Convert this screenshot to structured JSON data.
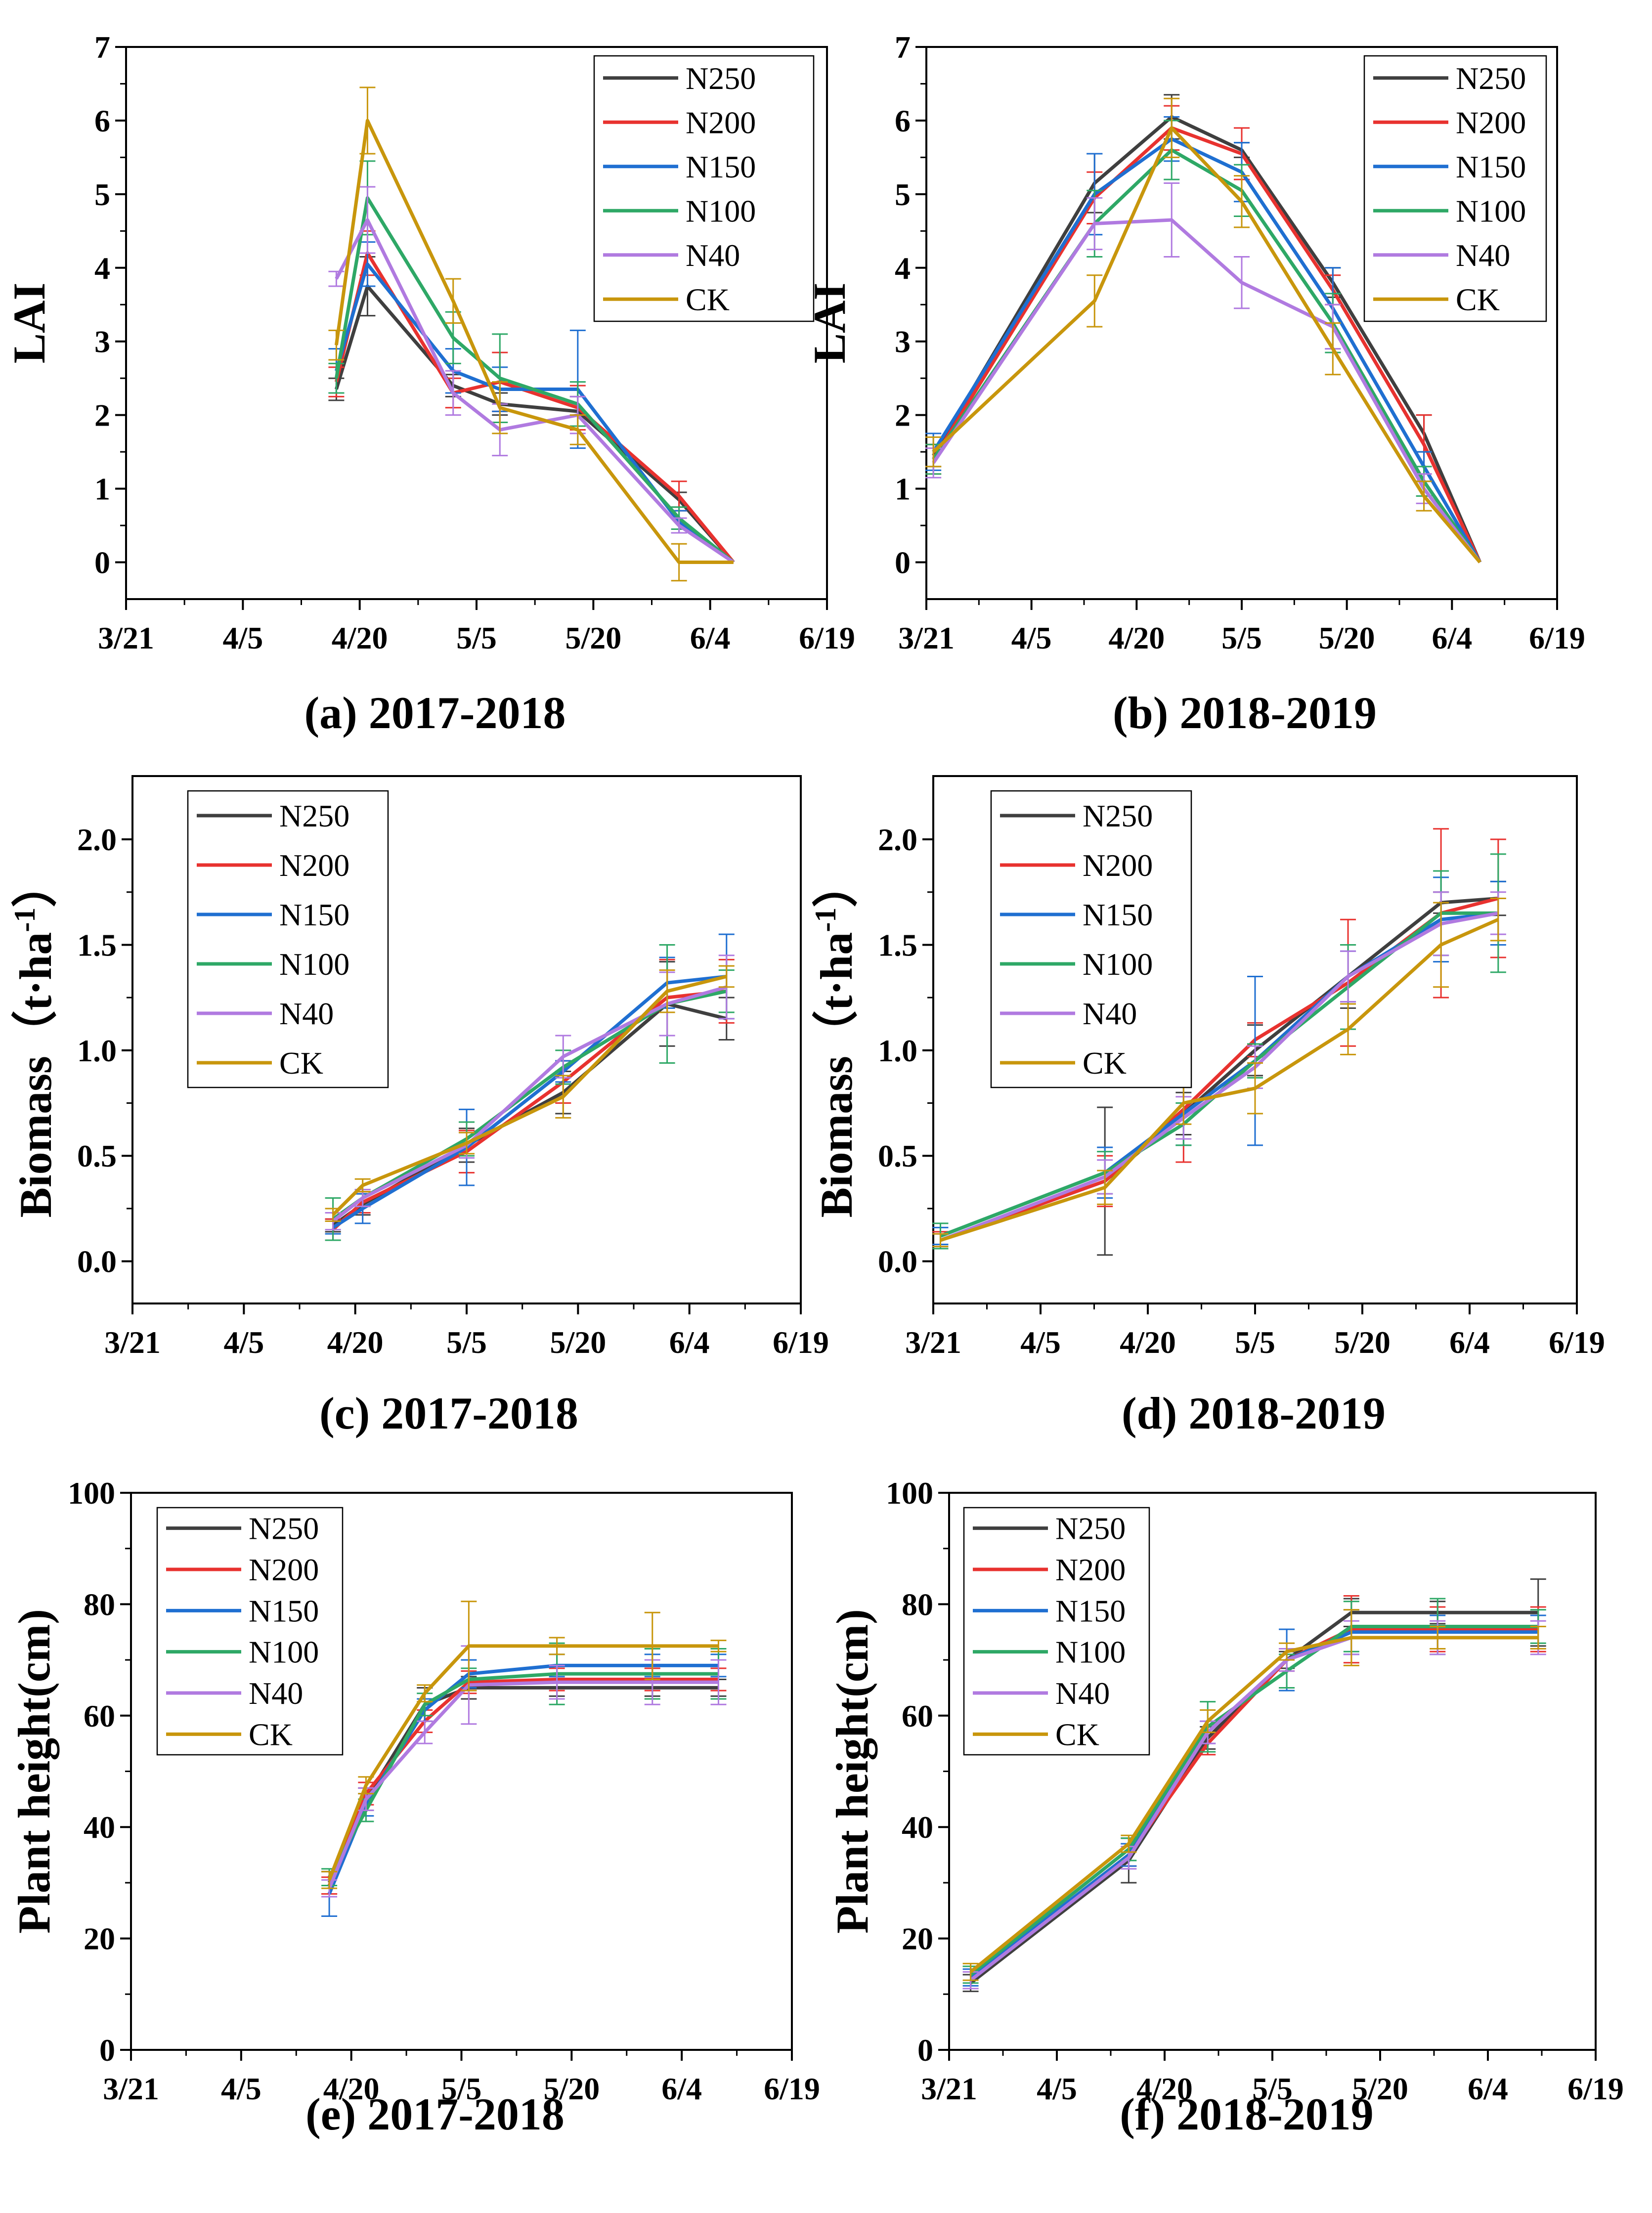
{
  "colors": {
    "N250": "#3f3f3f",
    "N200": "#e8322f",
    "N150": "#1f6fd1",
    "N100": "#2ea866",
    "N40": "#b07ae0",
    "CK": "#c8960c",
    "axis": "#000000"
  },
  "chart_data": [
    {
      "id": "a",
      "type": "line",
      "caption": "(a) 2017-2018",
      "ylabel": "LAI",
      "xlabel": "",
      "x_tick_labels": [
        "3/21",
        "4/5",
        "4/20",
        "5/5",
        "5/20",
        "6/4",
        "6/19"
      ],
      "y_tick_labels": [
        "0",
        "1",
        "2",
        "3",
        "4",
        "5",
        "6",
        "7"
      ],
      "xlim_days": [
        0,
        90
      ],
      "ylim": [
        -0.5,
        7
      ],
      "y_ticks": [
        0,
        1,
        2,
        3,
        4,
        5,
        6,
        7
      ],
      "legend": [
        "N250",
        "N200",
        "N150",
        "N100",
        "N40",
        "CK"
      ],
      "legend_position": "top-right",
      "x_days": [
        27,
        31,
        42,
        48,
        58,
        71,
        78
      ],
      "series": [
        {
          "name": "N250",
          "values": [
            2.35,
            3.75,
            2.4,
            2.15,
            2.05,
            0.85,
            0.0
          ],
          "err": [
            0.15,
            0.4,
            0.15,
            0.15,
            0.2,
            0.1,
            0.0
          ]
        },
        {
          "name": "N200",
          "values": [
            2.45,
            4.2,
            2.3,
            2.45,
            2.1,
            0.9,
            0.0
          ],
          "err": [
            0.2,
            0.3,
            0.2,
            0.4,
            0.3,
            0.2,
            0.0
          ]
        },
        {
          "name": "N150",
          "values": [
            2.6,
            4.05,
            2.6,
            2.35,
            2.35,
            0.55,
            0.0
          ],
          "err": [
            0.3,
            0.3,
            0.3,
            0.3,
            0.8,
            0.15,
            0.0
          ]
        },
        {
          "name": "N100",
          "values": [
            2.5,
            4.95,
            3.05,
            2.5,
            2.15,
            0.6,
            0.0
          ],
          "err": [
            0.2,
            0.5,
            0.35,
            0.6,
            0.3,
            0.15,
            0.0
          ]
        },
        {
          "name": "N40",
          "values": [
            3.85,
            4.65,
            2.3,
            1.8,
            2.0,
            0.5,
            0.0
          ],
          "err": [
            0.1,
            0.45,
            0.3,
            0.35,
            0.25,
            0.1,
            0.0
          ]
        },
        {
          "name": "CK",
          "values": [
            2.95,
            6.0,
            3.55,
            2.1,
            1.8,
            0.0,
            0.0
          ],
          "err": [
            0.2,
            0.45,
            0.3,
            0.35,
            0.2,
            0.25,
            0.0
          ]
        }
      ]
    },
    {
      "id": "b",
      "type": "line",
      "caption": "(b) 2018-2019",
      "ylabel": "LAI",
      "xlabel": "",
      "x_tick_labels": [
        "3/21",
        "4/5",
        "4/20",
        "5/5",
        "5/20",
        "6/4",
        "6/19"
      ],
      "y_tick_labels": [
        "0",
        "1",
        "2",
        "3",
        "4",
        "5",
        "6",
        "7"
      ],
      "xlim_days": [
        0,
        90
      ],
      "ylim": [
        -0.5,
        7
      ],
      "y_ticks": [
        0,
        1,
        2,
        3,
        4,
        5,
        6,
        7
      ],
      "legend": [
        "N250",
        "N200",
        "N150",
        "N100",
        "N40",
        "CK"
      ],
      "legend_position": "top-right",
      "x_days": [
        1,
        24,
        35,
        45,
        58,
        71,
        79
      ],
      "series": [
        {
          "name": "N250",
          "values": [
            1.45,
            5.15,
            6.05,
            5.6,
            3.8,
            1.75,
            0.0
          ],
          "err": [
            0.15,
            0.4,
            0.3,
            0.1,
            0.2,
            0.25,
            0.0
          ]
        },
        {
          "name": "N200",
          "values": [
            1.4,
            4.95,
            5.9,
            5.55,
            3.7,
            1.6,
            0.0
          ],
          "err": [
            0.2,
            0.35,
            0.3,
            0.35,
            0.2,
            0.4,
            0.0
          ]
        },
        {
          "name": "N150",
          "values": [
            1.5,
            5.0,
            5.75,
            5.3,
            3.45,
            1.3,
            0.0
          ],
          "err": [
            0.25,
            0.55,
            0.3,
            0.4,
            0.55,
            0.2,
            0.0
          ]
        },
        {
          "name": "N100",
          "values": [
            1.4,
            4.6,
            5.6,
            5.05,
            3.25,
            1.1,
            0.0
          ],
          "err": [
            0.2,
            0.45,
            0.4,
            0.35,
            0.4,
            0.2,
            0.0
          ]
        },
        {
          "name": "N40",
          "values": [
            1.35,
            4.6,
            4.65,
            3.8,
            3.2,
            1.0,
            0.0
          ],
          "err": [
            0.2,
            0.35,
            0.5,
            0.35,
            0.3,
            0.2,
            0.0
          ]
        },
        {
          "name": "CK",
          "values": [
            1.5,
            3.55,
            5.9,
            4.9,
            2.9,
            0.9,
            0.0
          ],
          "err": [
            0.2,
            0.35,
            0.4,
            0.35,
            0.35,
            0.2,
            0.0
          ]
        }
      ]
    },
    {
      "id": "c",
      "type": "line",
      "caption": "(c) 2017-2018",
      "ylabel": "Biomass（t·ha",
      "ylabel_sup": "-1",
      "ylabel_end": "）",
      "xlabel": "",
      "x_tick_labels": [
        "3/21",
        "4/5",
        "4/20",
        "5/5",
        "5/20",
        "6/4",
        "6/19"
      ],
      "y_tick_labels": [
        "0.0",
        "0.5",
        "1.0",
        "1.5",
        "2.0"
      ],
      "xlim_days": [
        0,
        90
      ],
      "ylim": [
        -0.2,
        2.3
      ],
      "y_ticks": [
        0,
        0.5,
        1.0,
        1.5,
        2.0
      ],
      "legend": [
        "N250",
        "N200",
        "N150",
        "N100",
        "N40",
        "CK"
      ],
      "legend_position": "top-left",
      "x_days": [
        27,
        31,
        45,
        58,
        72,
        80
      ],
      "series": [
        {
          "name": "N250",
          "values": [
            0.17,
            0.27,
            0.55,
            0.8,
            1.22,
            1.15
          ],
          "err": [
            0.03,
            0.05,
            0.08,
            0.1,
            0.2,
            0.1
          ]
        },
        {
          "name": "N200",
          "values": [
            0.15,
            0.28,
            0.52,
            0.85,
            1.25,
            1.28
          ],
          "err": [
            0.05,
            0.05,
            0.1,
            0.1,
            0.18,
            0.15
          ]
        },
        {
          "name": "N150",
          "values": [
            0.16,
            0.25,
            0.54,
            0.9,
            1.32,
            1.35
          ],
          "err": [
            0.03,
            0.07,
            0.18,
            0.05,
            0.12,
            0.2
          ]
        },
        {
          "name": "N100",
          "values": [
            0.2,
            0.3,
            0.58,
            0.92,
            1.22,
            1.28
          ],
          "err": [
            0.1,
            0.04,
            0.08,
            0.08,
            0.28,
            0.1
          ]
        },
        {
          "name": "N40",
          "values": [
            0.19,
            0.3,
            0.55,
            0.97,
            1.22,
            1.3
          ],
          "err": [
            0.04,
            0.04,
            0.06,
            0.1,
            0.15,
            0.15
          ]
        },
        {
          "name": "CK",
          "values": [
            0.22,
            0.36,
            0.56,
            0.78,
            1.28,
            1.35
          ],
          "err": [
            0.03,
            0.03,
            0.05,
            0.1,
            0.1,
            0.05
          ]
        }
      ]
    },
    {
      "id": "d",
      "type": "line",
      "caption": "(d) 2018-2019",
      "ylabel": "Biomass（t·ha",
      "ylabel_sup": "-1",
      "ylabel_end": "）",
      "xlabel": "",
      "x_tick_labels": [
        "3/21",
        "4/5",
        "4/20",
        "5/5",
        "5/20",
        "6/4",
        "6/19"
      ],
      "y_tick_labels": [
        "0.0",
        "0.5",
        "1.0",
        "1.5",
        "2.0"
      ],
      "xlim_days": [
        0,
        90
      ],
      "ylim": [
        -0.2,
        2.3
      ],
      "y_ticks": [
        0,
        0.5,
        1.0,
        1.5,
        2.0
      ],
      "legend": [
        "N250",
        "N200",
        "N150",
        "N100",
        "N40",
        "CK"
      ],
      "legend_position": "top-left",
      "x_days": [
        1,
        24,
        35,
        45,
        58,
        71,
        79
      ],
      "series": [
        {
          "name": "N250",
          "values": [
            0.1,
            0.38,
            0.7,
            1.0,
            1.35,
            1.7,
            1.72
          ],
          "err": [
            0.03,
            0.35,
            0.1,
            0.12,
            0.15,
            0.05,
            0.08
          ]
        },
        {
          "name": "N200",
          "values": [
            0.1,
            0.38,
            0.72,
            1.05,
            1.32,
            1.65,
            1.72
          ],
          "err": [
            0.04,
            0.12,
            0.25,
            0.08,
            0.3,
            0.4,
            0.28
          ]
        },
        {
          "name": "N150",
          "values": [
            0.12,
            0.42,
            0.7,
            0.95,
            1.35,
            1.62,
            1.65
          ],
          "err": [
            0.04,
            0.12,
            0.15,
            0.4,
            0.12,
            0.2,
            0.15
          ]
        },
        {
          "name": "N100",
          "values": [
            0.12,
            0.42,
            0.65,
            0.95,
            1.3,
            1.65,
            1.65
          ],
          "err": [
            0.06,
            0.1,
            0.1,
            0.08,
            0.2,
            0.2,
            0.28
          ]
        },
        {
          "name": "N40",
          "values": [
            0.1,
            0.4,
            0.68,
            0.92,
            1.35,
            1.6,
            1.65
          ],
          "err": [
            0.03,
            0.08,
            0.1,
            0.1,
            0.12,
            0.15,
            0.1
          ]
        },
        {
          "name": "CK",
          "values": [
            0.1,
            0.35,
            0.75,
            0.82,
            1.1,
            1.5,
            1.62
          ],
          "err": [
            0.03,
            0.08,
            0.1,
            0.12,
            0.12,
            0.2,
            0.1
          ]
        }
      ]
    },
    {
      "id": "e",
      "type": "line",
      "caption": "(e) 2017-2018",
      "ylabel": "Plant height(cm)",
      "xlabel": "",
      "x_tick_labels": [
        "3/21",
        "4/5",
        "4/20",
        "5/5",
        "5/20",
        "6/4",
        "6/19"
      ],
      "y_tick_labels": [
        "0",
        "20",
        "40",
        "60",
        "80",
        "100"
      ],
      "xlim_days": [
        0,
        90
      ],
      "ylim": [
        0,
        100
      ],
      "y_ticks": [
        0,
        20,
        40,
        60,
        80,
        100
      ],
      "legend": [
        "N250",
        "N200",
        "N150",
        "N100",
        "N40",
        "CK"
      ],
      "legend_position": "top-left",
      "x_days": [
        27,
        32,
        40,
        46,
        58,
        71,
        80
      ],
      "series": [
        {
          "name": "N250",
          "values": [
            30.0,
            45.0,
            62.0,
            65.0,
            65.0,
            65.0,
            65.0
          ],
          "err": [
            2.0,
            2.0,
            3.0,
            2.0,
            1.5,
            1.5,
            1.5
          ]
        },
        {
          "name": "N200",
          "values": [
            29.5,
            46.0,
            59.0,
            66.0,
            66.5,
            66.5,
            66.5
          ],
          "err": [
            1.5,
            2.0,
            2.0,
            2.0,
            2.0,
            2.0,
            2.0
          ]
        },
        {
          "name": "N150",
          "values": [
            28.0,
            44.0,
            61.0,
            67.5,
            69.0,
            69.0,
            69.0
          ],
          "err": [
            4.0,
            2.0,
            2.0,
            2.5,
            2.0,
            2.0,
            2.0
          ]
        },
        {
          "name": "N100",
          "values": [
            31.0,
            43.0,
            62.0,
            66.5,
            67.5,
            67.5,
            67.5
          ],
          "err": [
            1.5,
            2.0,
            2.0,
            2.0,
            5.5,
            4.5,
            4.5
          ]
        },
        {
          "name": "N40",
          "values": [
            29.0,
            45.0,
            57.0,
            65.5,
            66.0,
            66.0,
            66.0
          ],
          "err": [
            1.5,
            2.0,
            2.0,
            7.0,
            3.0,
            4.0,
            4.0
          ]
        },
        {
          "name": "CK",
          "values": [
            30.5,
            47.5,
            64.0,
            72.5,
            72.5,
            72.5,
            72.5
          ],
          "err": [
            1.5,
            1.5,
            1.5,
            8.0,
            1.5,
            6.0,
            1.0
          ]
        }
      ]
    },
    {
      "id": "f",
      "type": "line",
      "caption": "(f) 2018-2019",
      "ylabel": "Plant height(cm)",
      "xlabel": "",
      "x_tick_labels": [
        "3/21",
        "4/5",
        "4/20",
        "5/5",
        "5/20",
        "6/4",
        "6/19"
      ],
      "y_tick_labels": [
        "0",
        "20",
        "40",
        "60",
        "80",
        "100"
      ],
      "xlim_days": [
        0,
        90
      ],
      "ylim": [
        0,
        100
      ],
      "y_ticks": [
        0,
        20,
        40,
        60,
        80,
        100
      ],
      "legend": [
        "N250",
        "N200",
        "N150",
        "N100",
        "N40",
        "CK"
      ],
      "legend_position": "top-left",
      "x_days": [
        3,
        25,
        36,
        47,
        56,
        68,
        82
      ],
      "series": [
        {
          "name": "N250",
          "values": [
            12.0,
            34.0,
            56.0,
            70.0,
            78.5,
            78.5,
            78.5
          ],
          "err": [
            1.5,
            4.0,
            2.0,
            1.5,
            2.5,
            2.0,
            6.0
          ]
        },
        {
          "name": "N200",
          "values": [
            13.0,
            35.0,
            55.0,
            70.0,
            75.5,
            75.5,
            75.5
          ],
          "err": [
            2.0,
            2.0,
            2.0,
            2.0,
            6.0,
            4.0,
            4.0
          ]
        },
        {
          "name": "N150",
          "values": [
            13.0,
            35.0,
            57.0,
            70.0,
            75.0,
            75.0,
            75.0
          ],
          "err": [
            1.5,
            2.0,
            2.0,
            5.5,
            4.0,
            3.0,
            3.0
          ]
        },
        {
          "name": "N100",
          "values": [
            13.5,
            36.0,
            58.0,
            68.0,
            76.0,
            76.0,
            76.0
          ],
          "err": [
            1.5,
            2.0,
            4.5,
            3.0,
            4.5,
            5.0,
            3.0
          ]
        },
        {
          "name": "N40",
          "values": [
            12.5,
            34.5,
            57.0,
            70.0,
            74.0,
            74.0,
            74.0
          ],
          "err": [
            1.5,
            2.0,
            2.0,
            2.0,
            3.0,
            3.0,
            3.0
          ]
        },
        {
          "name": "CK",
          "values": [
            14.0,
            37.0,
            59.0,
            71.5,
            74.0,
            74.0,
            74.0
          ],
          "err": [
            1.5,
            1.5,
            2.0,
            1.5,
            5.0,
            2.0,
            2.0
          ]
        }
      ]
    }
  ]
}
